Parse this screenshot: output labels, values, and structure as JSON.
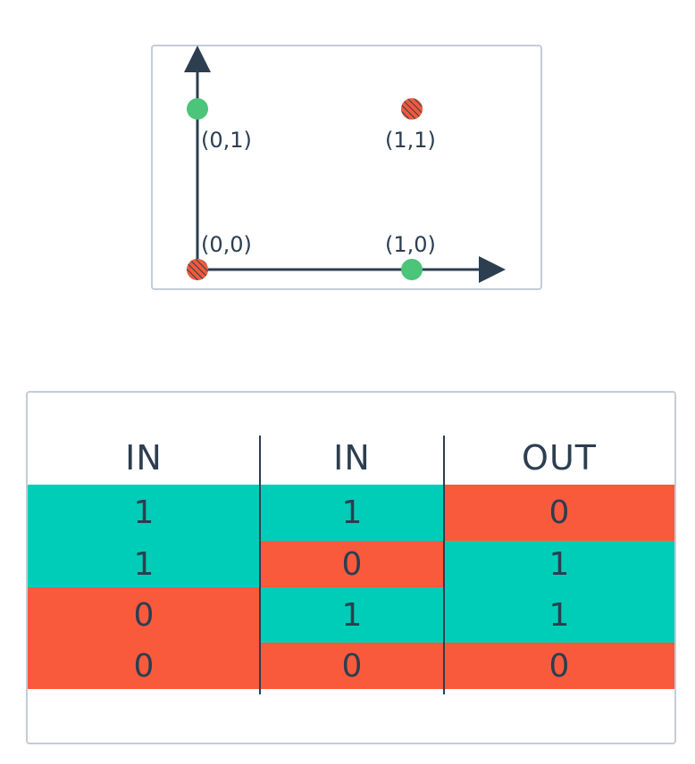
{
  "plot": {
    "points": [
      {
        "label": "(0,1)",
        "x": 0,
        "y": 1,
        "class": "green"
      },
      {
        "label": "(1,1)",
        "x": 1,
        "y": 1,
        "class": "red"
      },
      {
        "label": "(0,0)",
        "x": 0,
        "y": 0,
        "class": "red"
      },
      {
        "label": "(1,0)",
        "x": 1,
        "y": 0,
        "class": "green"
      }
    ],
    "colors": {
      "green": "#4cc47a",
      "red": "#f05a3c",
      "axis": "#2c3e50"
    }
  },
  "table": {
    "headers": [
      "IN",
      "IN",
      "OUT"
    ],
    "rows": [
      [
        "1",
        "1",
        "0"
      ],
      [
        "1",
        "0",
        "1"
      ],
      [
        "0",
        "1",
        "1"
      ],
      [
        "0",
        "0",
        "0"
      ]
    ],
    "colors": {
      "teal": "#00cdb8",
      "red": "#fa5a3c"
    }
  }
}
